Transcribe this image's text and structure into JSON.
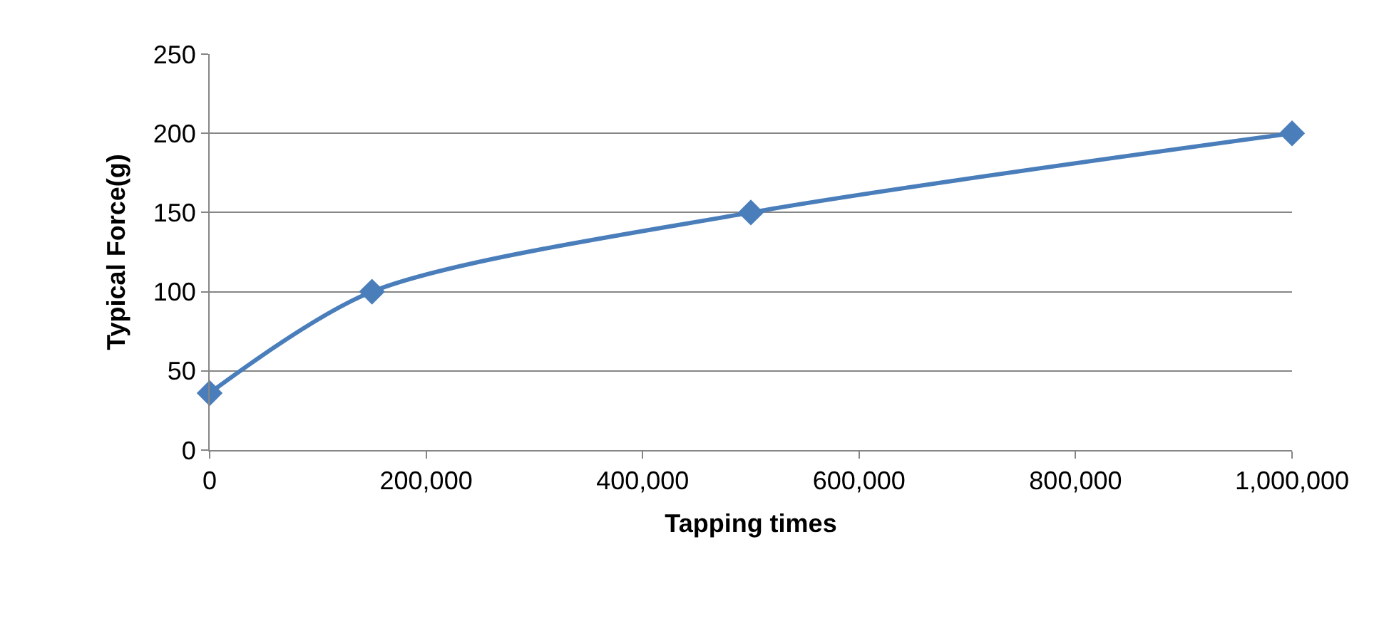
{
  "chart_data": {
    "type": "line",
    "xlabel": "Tapping times",
    "ylabel": "Typical Force(g)",
    "x": [
      0,
      150000,
      500000,
      1000000
    ],
    "series": [
      {
        "color": "#4a7ebb",
        "values": [
          36,
          100,
          150,
          200
        ]
      }
    ],
    "xlim": [
      0,
      1000000
    ],
    "xticks": [
      {
        "value": 0,
        "label": "0"
      },
      {
        "value": 200000,
        "label": "200,000"
      },
      {
        "value": 400000,
        "label": "400,000"
      },
      {
        "value": 600000,
        "label": "600,000"
      },
      {
        "value": 800000,
        "label": "800,000"
      },
      {
        "value": 1000000,
        "label": "1,000,000"
      }
    ],
    "ylim": [
      0,
      250
    ],
    "yticks": [
      0,
      50,
      100,
      150,
      200,
      250
    ],
    "grid": "y",
    "marker": "diamond",
    "line_style": "solid"
  }
}
